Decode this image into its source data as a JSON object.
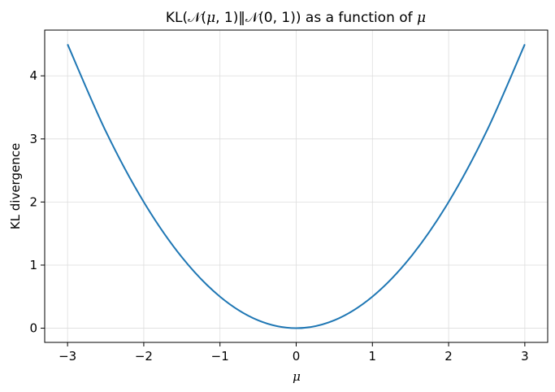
{
  "chart_data": {
    "type": "line",
    "title": "KL(𝒩(μ, 1)‖𝒩(0, 1)) as a function of μ",
    "title_parts": {
      "prefix": "KL(𝒩(",
      "mu": "μ",
      "mid": ", 1)‖𝒩(0, 1)) as a function of ",
      "suffix_mu": "μ"
    },
    "xlabel": "μ",
    "ylabel": "KL divergence",
    "xlim": [
      -3.3,
      3.3
    ],
    "ylim": [
      -0.225,
      4.725
    ],
    "xticks": [
      -3,
      -2,
      -1,
      0,
      1,
      2,
      3
    ],
    "xtick_labels": [
      "−3",
      "−2",
      "−1",
      "0",
      "1",
      "2",
      "3"
    ],
    "yticks": [
      0,
      1,
      2,
      3,
      4
    ],
    "ytick_labels": [
      "0",
      "1",
      "2",
      "3",
      "4"
    ],
    "grid": true,
    "series": [
      {
        "color": "#1f77b4",
        "x": [
          -3,
          -2.5,
          -2,
          -1.5,
          -1,
          -0.5,
          0,
          0.5,
          1,
          1.5,
          2,
          2.5,
          3
        ],
        "y": [
          4.5,
          3.125,
          2,
          1.125,
          0.5,
          0.125,
          0,
          0.125,
          0.5,
          1.125,
          2,
          3.125,
          4.5
        ]
      }
    ]
  }
}
